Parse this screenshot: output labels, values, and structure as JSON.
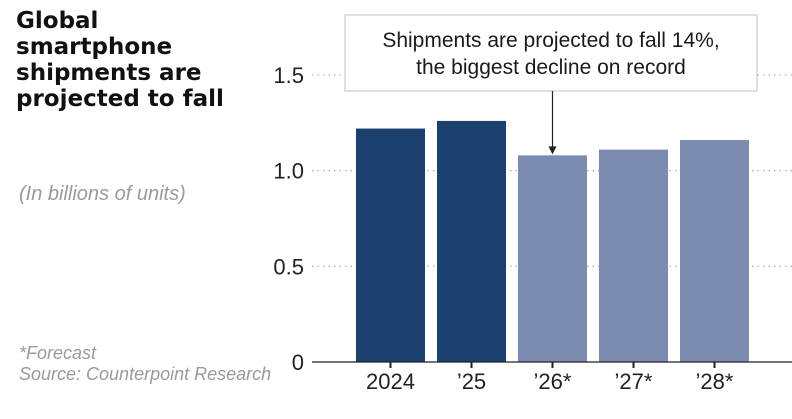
{
  "title": "Global smartphone shipments are projected to fall",
  "subtitle": "(In billions of units)",
  "footnote": {
    "forecast": "*Forecast",
    "source": "Source: Counterpoint Research"
  },
  "colors": {
    "actual": "#1b3f6e",
    "forecast": "#7b8cb0",
    "forecast_label": "#9a9a9a",
    "grid": "#b0b0b0"
  },
  "chart_data": {
    "type": "bar",
    "categories": [
      "2024",
      "’25",
      "’26*",
      "’27*",
      "’28*"
    ],
    "values": [
      1.22,
      1.26,
      1.08,
      1.11,
      1.16
    ],
    "forecast": [
      false,
      false,
      true,
      true,
      true
    ],
    "ylim": [
      0,
      1.5
    ],
    "yticks": [
      0,
      0.5,
      1.0,
      1.5
    ],
    "ytick_labels": [
      "0",
      "0.5",
      "1.0",
      "1.5"
    ],
    "grid": true,
    "annotation": {
      "lines": [
        "Shipments are projected to fall 14%,",
        "the biggest decline on record"
      ],
      "target_index": 2
    }
  }
}
